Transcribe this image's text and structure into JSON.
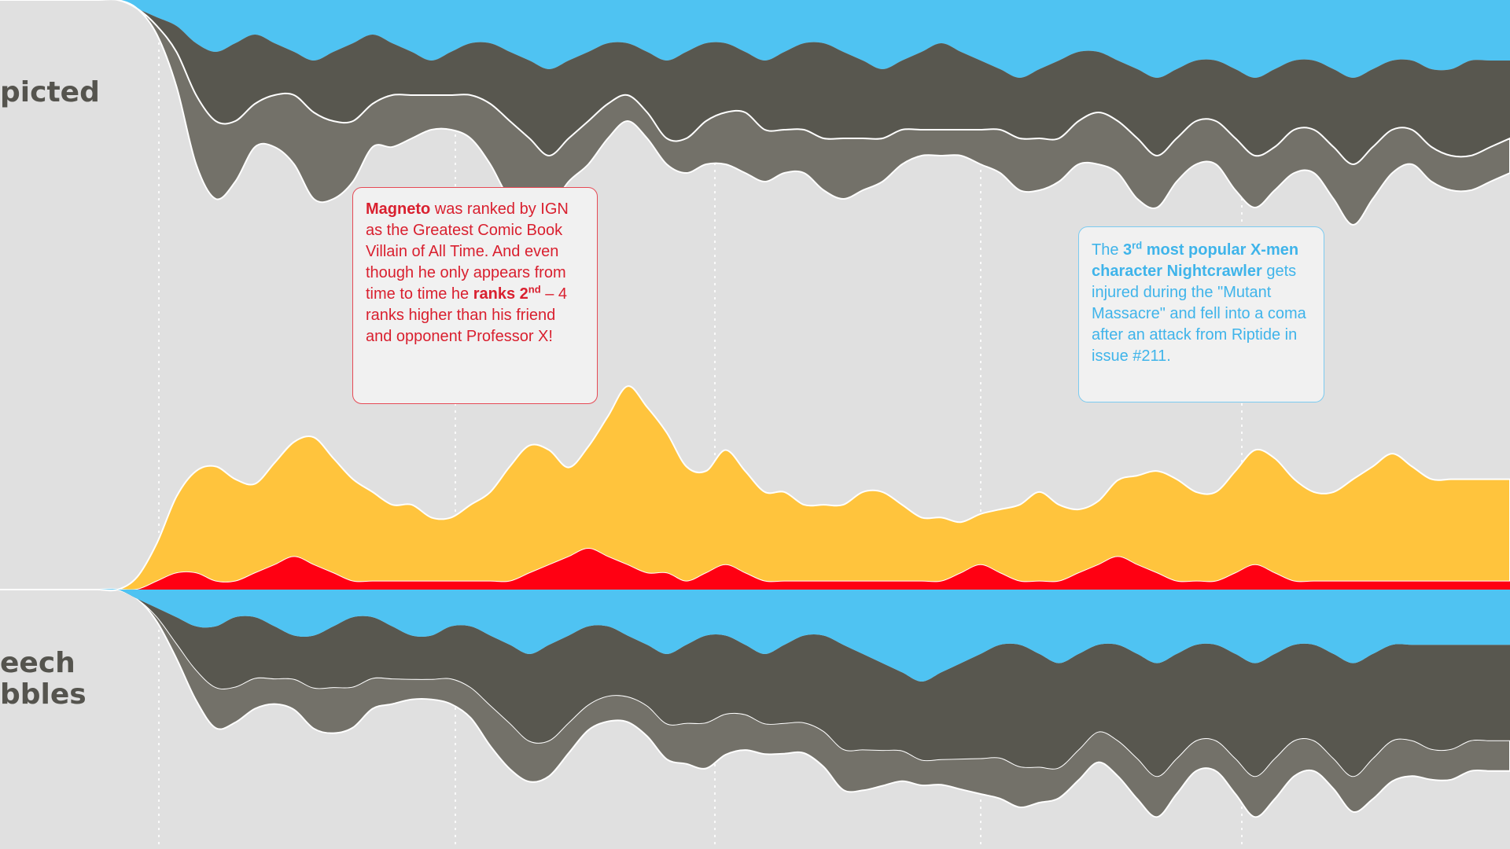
{
  "colors": {
    "background": "#e0e0e0",
    "white_stroke": "#ffffff",
    "gray_light": "#737169",
    "gray_dark": "#58574f",
    "blue_light": "#4fc3f2",
    "blue_dark": "#1aa6e4",
    "yellow_light": "#ffc43d",
    "yellow_dark": "#ffae00",
    "red_bright": "#ff0012",
    "red_dark": "#c8000c"
  },
  "rows": {
    "depicted_label": "picted",
    "speech_label_line1": "eech",
    "speech_label_line2": "bbles"
  },
  "callouts": {
    "magneto": {
      "name": "Magneto",
      "text1": " was ranked by IGN as the Greatest Comic Book Villain of All Time. And even though he only appears from time to time he ",
      "rank": "ranks 2",
      "rank_sup": "nd",
      "text2": " – 4 ranks higher than his friend and opponent Professor X!"
    },
    "nightcrawler": {
      "intro": "The ",
      "bold1": "3",
      "sup": "rd",
      "bold2": " most popular X-men character Nightcrawler",
      "text": " gets injured during the \"Mutant Massacre\" and fell into a coma after an attack from Riptide in issue #211."
    }
  },
  "chart_data": {
    "type": "area",
    "title": "",
    "xlabel": "",
    "ylabel": "",
    "x": [
      0,
      1,
      2,
      3,
      4,
      5,
      6,
      7,
      8,
      9,
      10,
      11,
      12,
      13,
      14,
      15,
      16,
      17,
      18,
      19,
      20,
      21,
      22,
      23,
      24,
      25,
      26,
      27,
      28,
      29,
      30,
      31,
      32,
      33,
      34,
      35,
      36,
      37,
      38,
      39,
      40,
      41,
      42,
      43,
      44,
      45,
      46,
      47,
      48,
      49,
      50,
      51,
      52,
      53,
      54,
      55,
      56,
      57,
      58,
      59,
      60,
      61,
      62,
      63,
      64,
      65,
      66,
      67,
      68,
      69,
      70,
      71,
      72,
      73,
      74,
      75,
      76,
      77
    ],
    "grid": "vertical-dotted",
    "panels": [
      {
        "name": "depicted",
        "series": [
          {
            "name": "gray outer",
            "color": "#737169",
            "values": [
              0,
              0,
              0,
              0,
              0,
              0,
              0,
              0,
              1,
              4,
              8,
              9,
              7,
              5,
              6,
              8,
              10,
              9,
              7,
              5,
              6,
              5,
              4,
              4,
              5,
              7,
              9,
              8,
              6,
              5,
              5,
              4,
              3,
              3,
              3,
              4,
              5,
              6,
              7,
              6,
              5,
              5,
              6,
              7,
              6,
              5,
              4,
              3,
              3,
              3,
              4,
              5,
              6,
              6,
              5,
              5,
              6,
              6,
              7,
              6,
              5,
              5,
              5,
              6,
              6,
              5,
              5,
              5,
              6,
              7,
              6,
              5,
              4,
              4,
              4,
              4,
              4,
              4
            ]
          },
          {
            "name": "gray inner",
            "color": "#58574f",
            "values": [
              0,
              0,
              0,
              0,
              0,
              0,
              0,
              0,
              1,
              3,
              6,
              8,
              9,
              8,
              6,
              5,
              6,
              8,
              9,
              8,
              6,
              5,
              4,
              5,
              6,
              7,
              8,
              9,
              10,
              9,
              8,
              7,
              6,
              7,
              9,
              10,
              9,
              8,
              7,
              8,
              9,
              10,
              11,
              10,
              9,
              8,
              8,
              9,
              10,
              9,
              8,
              7,
              7,
              8,
              9,
              8,
              7,
              7,
              8,
              9,
              8,
              7,
              7,
              8,
              9,
              9,
              8,
              8,
              9,
              10,
              9,
              8,
              8,
              9,
              10,
              11,
              10,
              9
            ]
          },
          {
            "name": "blue",
            "color": "#4fc3f2",
            "values": [
              0,
              0,
              0,
              0,
              0,
              0,
              0,
              1,
              2,
              3,
              5,
              6,
              5,
              4,
              5,
              6,
              7,
              6,
              5,
              4,
              5,
              6,
              7,
              6,
              5,
              5,
              6,
              7,
              8,
              7,
              6,
              5,
              5,
              6,
              7,
              6,
              5,
              5,
              6,
              7,
              6,
              5,
              5,
              6,
              7,
              8,
              7,
              6,
              5,
              6,
              7,
              8,
              9,
              8,
              7,
              6,
              6,
              7,
              8,
              9,
              8,
              7,
              7,
              8,
              9,
              8,
              7,
              7,
              8,
              9,
              8,
              7,
              7,
              8,
              8,
              7,
              7,
              7
            ]
          }
        ]
      },
      {
        "name": "speech bubbles",
        "series": [
          {
            "name": "gray outer",
            "color": "#737169",
            "values": [
              0,
              0,
              0,
              0,
              0,
              0,
              0,
              0,
              1,
              3,
              6,
              8,
              7,
              6,
              5,
              6,
              8,
              9,
              8,
              6,
              5,
              4,
              4,
              5,
              6,
              8,
              9,
              8,
              7,
              6,
              5,
              5,
              5,
              6,
              7,
              8,
              9,
              8,
              7,
              6,
              6,
              6,
              7,
              8,
              8,
              7,
              6,
              5,
              5,
              6,
              7,
              8,
              8,
              7,
              6,
              6,
              6,
              7,
              8,
              8,
              7,
              6,
              6,
              7,
              8,
              8,
              7,
              6,
              6,
              7,
              8,
              8,
              7,
              6,
              6,
              6,
              6,
              6
            ]
          },
          {
            "name": "gray inner",
            "color": "#58574f",
            "values": [
              0,
              0,
              0,
              0,
              0,
              0,
              0,
              0,
              1,
              3,
              5,
              7,
              8,
              7,
              6,
              5,
              6,
              7,
              8,
              7,
              6,
              5,
              5,
              6,
              7,
              8,
              9,
              10,
              11,
              10,
              9,
              8,
              7,
              7,
              8,
              9,
              10,
              9,
              8,
              8,
              9,
              10,
              11,
              12,
              11,
              10,
              9,
              9,
              10,
              11,
              12,
              13,
              14,
              13,
              12,
              11,
              10,
              11,
              12,
              13,
              12,
              11,
              11,
              12,
              13,
              12,
              11,
              11,
              12,
              13,
              12,
              11,
              11,
              12,
              12,
              11,
              11,
              11
            ]
          },
          {
            "name": "blue",
            "color": "#4fc3f2",
            "values": [
              0,
              0,
              0,
              0,
              0,
              0,
              0,
              1,
              2,
              3,
              4,
              4,
              3,
              3,
              4,
              5,
              5,
              4,
              3,
              3,
              4,
              5,
              5,
              4,
              4,
              5,
              6,
              7,
              6,
              5,
              4,
              4,
              5,
              6,
              7,
              6,
              5,
              5,
              6,
              7,
              6,
              5,
              5,
              6,
              7,
              8,
              9,
              10,
              9,
              8,
              7,
              6,
              6,
              7,
              8,
              7,
              6,
              6,
              7,
              8,
              7,
              6,
              6,
              7,
              8,
              7,
              6,
              6,
              7,
              8,
              7,
              6,
              6,
              6,
              6,
              6,
              6,
              6
            ]
          },
          {
            "name": "red",
            "color": "#ff0012",
            "values": [
              0,
              0,
              0,
              0,
              0,
              0,
              0,
              0,
              1,
              2,
              2,
              1,
              1,
              2,
              3,
              4,
              3,
              2,
              1,
              1,
              1,
              1,
              1,
              1,
              1,
              1,
              1,
              2,
              3,
              4,
              5,
              4,
              3,
              2,
              2,
              1,
              2,
              3,
              2,
              1,
              1,
              1,
              1,
              1,
              1,
              1,
              1,
              1,
              1,
              2,
              3,
              2,
              1,
              1,
              1,
              2,
              3,
              4,
              3,
              2,
              1,
              1,
              1,
              2,
              3,
              2,
              1,
              1,
              1,
              1,
              1,
              1,
              1,
              1,
              1,
              1,
              1,
              1
            ]
          },
          {
            "name": "yellow",
            "color": "#ffc43d",
            "values": [
              0,
              0,
              0,
              0,
              0,
              0,
              0,
              1,
              3,
              6,
              8,
              9,
              8,
              7,
              8,
              9,
              10,
              9,
              8,
              7,
              6,
              6,
              5,
              5,
              6,
              7,
              9,
              10,
              9,
              7,
              8,
              11,
              14,
              13,
              11,
              9,
              8,
              9,
              8,
              7,
              7,
              6,
              6,
              6,
              7,
              7,
              6,
              5,
              5,
              4,
              4,
              5,
              6,
              7,
              6,
              5,
              5,
              6,
              7,
              8,
              8,
              7,
              7,
              8,
              9,
              9,
              8,
              7,
              7,
              8,
              9,
              10,
              9,
              8,
              8,
              8,
              8,
              8
            ]
          }
        ]
      }
    ],
    "annotations": [
      "Magneto was ranked by IGN as the Greatest Comic Book Villain of All Time. And even though he only appears from time to time he ranks 2nd – 4 ranks higher than his friend and opponent Professor X!",
      "The 3rd most popular X-men character Nightcrawler gets injured during the \"Mutant Massacre\" and fell into a coma after an attack from Riptide in issue #211."
    ]
  }
}
